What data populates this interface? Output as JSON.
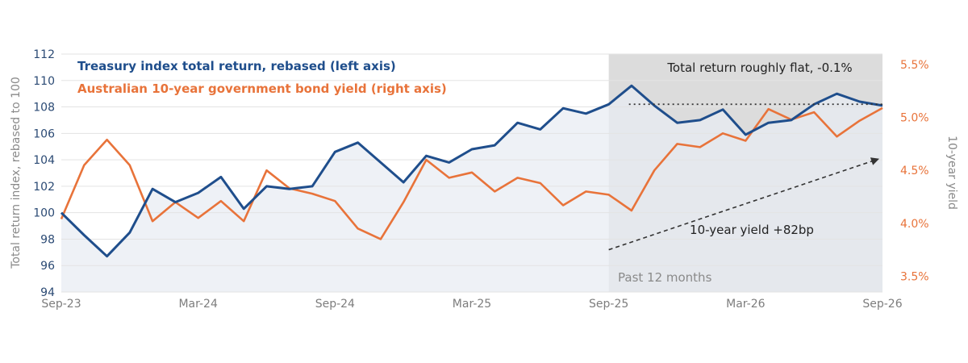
{
  "chart_data": {
    "type": "line",
    "title": "",
    "x_ticks": [
      "Sep-23",
      "Mar-24",
      "Sep-24",
      "Mar-25",
      "Sep-25",
      "Mar-26",
      "Sep-26"
    ],
    "x_range": [
      "2023-09",
      "2026-09"
    ],
    "y_left": {
      "label": "Total return index, rebased to 100",
      "ticks": [
        "94",
        "96",
        "98",
        "100",
        "102",
        "104",
        "106",
        "108",
        "110",
        "112"
      ],
      "range": [
        94,
        112
      ]
    },
    "y_right": {
      "label": "10-year yield",
      "ticks": [
        "3.5%",
        "4.0%",
        "4.5%",
        "5.0%",
        "5.5%"
      ],
      "range": [
        3.35,
        5.6
      ]
    },
    "grid": true,
    "legend_position": "top-left",
    "series": [
      {
        "name": "Treasury index total return, rebased (left axis)",
        "axis": "left",
        "color": "#1f4e8c",
        "points": [
          [
            "2023-09",
            100.0
          ],
          [
            "2023-10",
            98.3
          ],
          [
            "2023-11",
            96.7
          ],
          [
            "2023-12",
            98.5
          ],
          [
            "2024-01",
            101.8
          ],
          [
            "2024-02",
            100.8
          ],
          [
            "2024-03",
            101.5
          ],
          [
            "2024-04",
            102.7
          ],
          [
            "2024-05",
            100.3
          ],
          [
            "2024-06",
            102.0
          ],
          [
            "2024-07",
            101.8
          ],
          [
            "2024-08",
            102.0
          ],
          [
            "2024-09",
            104.6
          ],
          [
            "2024-10",
            105.3
          ],
          [
            "2024-11",
            103.8
          ],
          [
            "2024-12",
            102.3
          ],
          [
            "2025-01",
            104.3
          ],
          [
            "2025-02",
            103.8
          ],
          [
            "2025-03",
            104.8
          ],
          [
            "2025-04",
            105.1
          ],
          [
            "2025-05",
            106.8
          ],
          [
            "2025-06",
            106.3
          ],
          [
            "2025-07",
            107.9
          ],
          [
            "2025-08",
            107.5
          ],
          [
            "2025-09",
            108.2
          ],
          [
            "2025-10",
            109.6
          ],
          [
            "2025-11",
            108.1
          ],
          [
            "2025-12",
            106.8
          ],
          [
            "2026-01",
            107.0
          ],
          [
            "2026-02",
            107.8
          ],
          [
            "2026-03",
            105.9
          ],
          [
            "2026-04",
            106.8
          ],
          [
            "2026-05",
            107.0
          ],
          [
            "2026-06",
            108.2
          ],
          [
            "2026-07",
            109.0
          ],
          [
            "2026-08",
            108.4
          ],
          [
            "2026-09",
            108.1
          ]
        ]
      },
      {
        "name": "Australian 10-year government bond yield (right axis)",
        "axis": "right",
        "color": "#e8733a",
        "points": [
          [
            "2023-09",
            4.04
          ],
          [
            "2023-10",
            4.55
          ],
          [
            "2023-11",
            4.79
          ],
          [
            "2023-12",
            4.55
          ],
          [
            "2024-01",
            4.02
          ],
          [
            "2024-02",
            4.2
          ],
          [
            "2024-03",
            4.05
          ],
          [
            "2024-04",
            4.21
          ],
          [
            "2024-05",
            4.02
          ],
          [
            "2024-06",
            4.5
          ],
          [
            "2024-07",
            4.33
          ],
          [
            "2024-08",
            4.28
          ],
          [
            "2024-09",
            4.21
          ],
          [
            "2024-10",
            3.95
          ],
          [
            "2024-11",
            3.85
          ],
          [
            "2024-12",
            4.2
          ],
          [
            "2025-01",
            4.6
          ],
          [
            "2025-02",
            4.43
          ],
          [
            "2025-03",
            4.48
          ],
          [
            "2025-04",
            4.3
          ],
          [
            "2025-05",
            4.43
          ],
          [
            "2025-06",
            4.38
          ],
          [
            "2025-07",
            4.17
          ],
          [
            "2025-08",
            4.3
          ],
          [
            "2025-09",
            4.27
          ],
          [
            "2025-10",
            4.12
          ],
          [
            "2025-11",
            4.5
          ],
          [
            "2025-12",
            4.75
          ],
          [
            "2026-01",
            4.72
          ],
          [
            "2026-02",
            4.85
          ],
          [
            "2026-03",
            4.78
          ],
          [
            "2026-04",
            5.08
          ],
          [
            "2026-05",
            4.98
          ],
          [
            "2026-06",
            5.05
          ],
          [
            "2026-07",
            4.82
          ],
          [
            "2026-08",
            4.97
          ],
          [
            "2026-09",
            5.09
          ]
        ]
      }
    ],
    "shaded_region": {
      "from": "2025-09",
      "to": "2026-09",
      "label": "Past 12 months"
    },
    "annotations": [
      {
        "text": "Total return roughly flat, -0.1%",
        "style": "dotted-horizontal",
        "from": [
          "2025-09",
          108.2
        ],
        "to": [
          "2026-09",
          108.1
        ]
      },
      {
        "text": "10-year yield +82bp",
        "style": "dashed-arrow",
        "from": [
          "2025-09",
          4.27
        ],
        "to": [
          "2026-09",
          5.09
        ]
      }
    ],
    "colors": {
      "shade_area": "#e8ecf3",
      "shade_past": "#dcdcdc",
      "grid": "#e3e3e3"
    }
  }
}
